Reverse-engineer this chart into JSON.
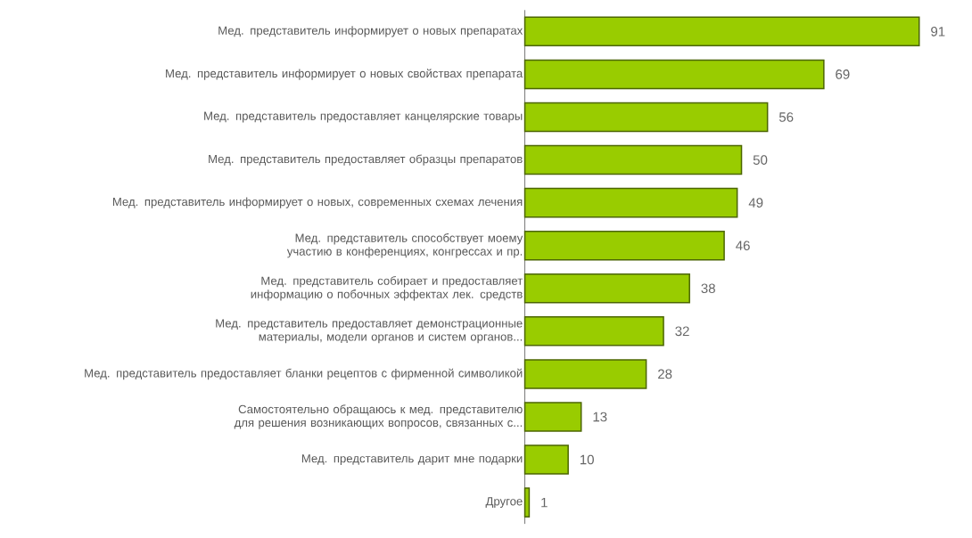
{
  "chart_data": {
    "type": "bar",
    "orientation": "horizontal",
    "data_labels": true,
    "color": "#99cc00",
    "categories": [
      "Мед. представитель информирует о новых препаратах",
      "Мед. представитель информирует о новых свойствах препарата",
      "Мед. представитель предоставляет канцелярские товары",
      "Мед. представитель предоставляет образцы препаратов",
      "Мед. представитель информирует о новых, современных схемах лечения",
      "Мед. представитель способствует моему участию в конференциях, конгрессах и пр.",
      "Мед. представитель собирает и предоставляет информацию о побочных эффектах лек. средств",
      "Мед. представитель предоставляет демонстрационные материалы, модели органов и систем органов...",
      "Мед. представитель предоставляет бланки рецептов с фирменной символикой",
      "Самостоятельно обращаюсь к мед. представителю для решения возникающих вопросов, связанных с...",
      "Мед. представитель дарит мне подарки",
      "Другое"
    ],
    "values": [
      91,
      69,
      56,
      50,
      49,
      46,
      38,
      32,
      28,
      13,
      10,
      1
    ]
  }
}
